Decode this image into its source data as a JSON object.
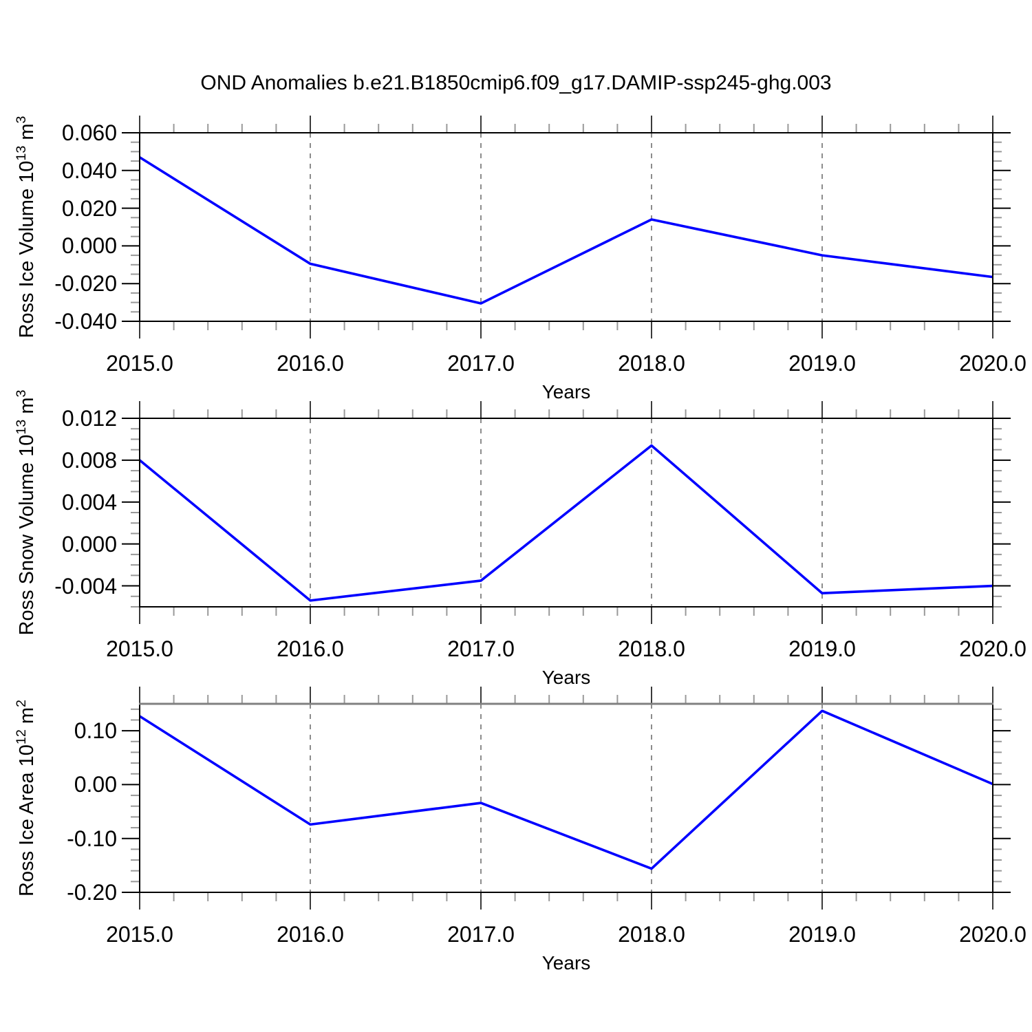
{
  "title": "OND Anomalies b.e21.B1850cmip6.f09_g17.DAMIP-ssp245-ghg.003",
  "line_color": "#0000ff",
  "grid_color": "#808080",
  "axis_color": "#000000",
  "minor_tick_color": "#999999",
  "major_tick_color": "#3a3a3a",
  "panel3_top_border_color": "#808080",
  "chart_data": [
    {
      "type": "line",
      "ylabel_parts": [
        [
          "Ross Ice Volume 10",
          false
        ],
        [
          "13",
          true
        ],
        [
          " m",
          false
        ],
        [
          "3",
          true
        ]
      ],
      "xlabel": "Years",
      "x": [
        2015,
        2016,
        2017,
        2018,
        2019,
        2020
      ],
      "values": [
        0.047,
        -0.0095,
        -0.0305,
        0.014,
        -0.005,
        -0.0165
      ],
      "xlim": [
        2015,
        2020
      ],
      "ylim": [
        -0.04,
        0.06
      ],
      "yticks": [
        {
          "v": 0.06,
          "t": "0.060"
        },
        {
          "v": 0.04,
          "t": "0.040"
        },
        {
          "v": 0.02,
          "t": "0.020"
        },
        {
          "v": 0.0,
          "t": "0.000"
        },
        {
          "v": -0.02,
          "t": "-0.020"
        },
        {
          "v": -0.04,
          "t": "-0.040"
        }
      ],
      "yminor_step": 0.005,
      "xticks": [
        {
          "v": 2015,
          "t": "2015.0"
        },
        {
          "v": 2016,
          "t": "2016.0"
        },
        {
          "v": 2017,
          "t": "2017.0"
        },
        {
          "v": 2018,
          "t": "2018.0"
        },
        {
          "v": 2019,
          "t": "2019.0"
        },
        {
          "v": 2020,
          "t": "2020.0"
        }
      ],
      "xminor_step": 0.2,
      "grid_x": [
        2016,
        2017,
        2018,
        2019
      ],
      "grid_on": true,
      "legend": "none"
    },
    {
      "type": "line",
      "ylabel_parts": [
        [
          "Ross Snow Volume 10",
          false
        ],
        [
          "13",
          true
        ],
        [
          " m",
          false
        ],
        [
          "3",
          true
        ]
      ],
      "xlabel": "Years",
      "x": [
        2015,
        2016,
        2017,
        2018,
        2019,
        2020
      ],
      "values": [
        0.008,
        -0.0054,
        -0.0035,
        0.0094,
        -0.0047,
        -0.004
      ],
      "xlim": [
        2015,
        2020
      ],
      "ylim": [
        -0.006,
        0.012
      ],
      "yticks": [
        {
          "v": 0.012,
          "t": "0.012"
        },
        {
          "v": 0.008,
          "t": "0.008"
        },
        {
          "v": 0.004,
          "t": "0.004"
        },
        {
          "v": 0.0,
          "t": "0.000"
        },
        {
          "v": -0.004,
          "t": "-0.004"
        }
      ],
      "yminor_step": 0.001,
      "xticks": [
        {
          "v": 2015,
          "t": "2015.0"
        },
        {
          "v": 2016,
          "t": "2016.0"
        },
        {
          "v": 2017,
          "t": "2017.0"
        },
        {
          "v": 2018,
          "t": "2018.0"
        },
        {
          "v": 2019,
          "t": "2019.0"
        },
        {
          "v": 2020,
          "t": "2020.0"
        }
      ],
      "xminor_step": 0.2,
      "grid_x": [
        2016,
        2017,
        2018,
        2019
      ],
      "grid_on": true,
      "legend": "none"
    },
    {
      "type": "line",
      "ylabel_parts": [
        [
          "Ross Ice Area 10",
          false
        ],
        [
          "12",
          true
        ],
        [
          " m",
          false
        ],
        [
          "2",
          true
        ]
      ],
      "xlabel": "Years",
      "x": [
        2015,
        2016,
        2017,
        2018,
        2019,
        2020
      ],
      "values": [
        0.127,
        -0.074,
        -0.034,
        -0.156,
        0.137,
        0.001
      ],
      "xlim": [
        2015,
        2020
      ],
      "ylim": [
        -0.2,
        0.15
      ],
      "yticks": [
        {
          "v": 0.1,
          "t": "0.10"
        },
        {
          "v": 0.0,
          "t": "0.00"
        },
        {
          "v": -0.1,
          "t": "-0.10"
        },
        {
          "v": -0.2,
          "t": "-0.20"
        }
      ],
      "yminor_step": 0.02,
      "xticks": [
        {
          "v": 2015,
          "t": "2015.0"
        },
        {
          "v": 2016,
          "t": "2016.0"
        },
        {
          "v": 2017,
          "t": "2017.0"
        },
        {
          "v": 2018,
          "t": "2018.0"
        },
        {
          "v": 2019,
          "t": "2019.0"
        },
        {
          "v": 2020,
          "t": "2020.0"
        }
      ],
      "xminor_step": 0.2,
      "grid_x": [
        2016,
        2017,
        2018,
        2019
      ],
      "grid_on": true,
      "legend": "none"
    }
  ]
}
